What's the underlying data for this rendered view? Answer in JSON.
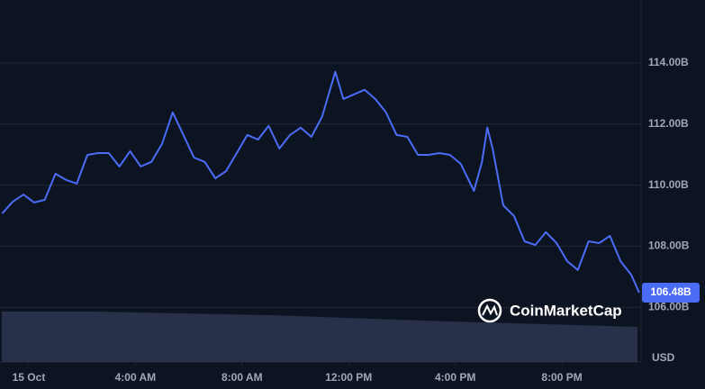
{
  "chart_data": {
    "type": "line",
    "watermark": "CoinMarketCap",
    "ylabel": "USD",
    "current_label": "106.48B",
    "x": [
      -1.0,
      -0.6,
      -0.2,
      0.2,
      0.6,
      1.0,
      1.4,
      1.8,
      2.2,
      2.6,
      3.0,
      3.4,
      3.8,
      4.2,
      4.6,
      5.0,
      5.4,
      5.8,
      6.2,
      6.6,
      7.0,
      7.4,
      7.8,
      8.2,
      8.6,
      9.0,
      9.4,
      9.8,
      10.2,
      10.6,
      11.0,
      11.5,
      11.8,
      12.2,
      12.6,
      13.0,
      13.4,
      13.8,
      14.2,
      14.6,
      15.0,
      15.4,
      15.8,
      16.2,
      16.7,
      17.0,
      17.2,
      17.4,
      17.8,
      18.2,
      18.6,
      19.0,
      19.4,
      19.8,
      20.2,
      20.6,
      21.0,
      21.4,
      21.8,
      22.2,
      22.6,
      22.9
    ],
    "series": [
      {
        "color": "#4a6cf7",
        "values": [
          109.07,
          109.46,
          109.69,
          109.43,
          109.52,
          110.37,
          110.17,
          110.05,
          110.99,
          111.05,
          111.05,
          110.61,
          111.11,
          110.61,
          110.76,
          111.35,
          112.38,
          111.64,
          110.9,
          110.76,
          110.22,
          110.46,
          111.05,
          111.64,
          111.49,
          111.94,
          111.2,
          111.64,
          111.88,
          111.58,
          112.23,
          113.71,
          112.82,
          112.97,
          113.12,
          112.82,
          112.38,
          111.64,
          111.58,
          110.99,
          110.99,
          111.05,
          110.99,
          110.7,
          109.81,
          110.76,
          111.88,
          111.2,
          109.34,
          108.99,
          108.16,
          108.04,
          108.46,
          108.1,
          107.51,
          107.22,
          108.16,
          108.1,
          108.34,
          107.51,
          107.07,
          106.48
        ]
      }
    ],
    "xlim": [
      -1.08,
      22.97
    ],
    "xticks": [
      {
        "value": 0,
        "label": "15 Oct"
      },
      {
        "value": 4,
        "label": "4:00 AM"
      },
      {
        "value": 8,
        "label": "8:00 AM"
      },
      {
        "value": 12,
        "label": "12:00 PM"
      },
      {
        "value": 16,
        "label": "4:00 PM"
      },
      {
        "value": 20,
        "label": "8:00 PM"
      }
    ],
    "ylim": [
      104.21,
      116.06
    ],
    "yticks": [
      {
        "value": 106,
        "label": "106.00B"
      },
      {
        "value": 108,
        "label": "108.00B"
      },
      {
        "value": 110,
        "label": "110.00B"
      },
      {
        "value": 112,
        "label": "112.00B"
      },
      {
        "value": 114,
        "label": "114.00B"
      }
    ],
    "grid": true
  }
}
